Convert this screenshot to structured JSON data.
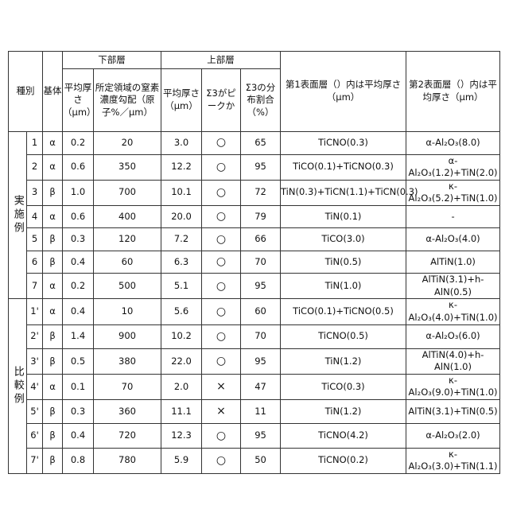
{
  "header": {
    "type": "種別",
    "substrate": "基体",
    "lower_layer": "下部層",
    "lower_thickness": "平均厚さ（μm）",
    "lower_gradient": "所定領域の窒素濃度勾配（原子%／μm）",
    "upper_layer": "上部層",
    "upper_thickness": "平均厚さ（μm）",
    "sigma3_peak": "Σ3がピークか",
    "sigma3_ratio": "Σ3の分布割合（%）",
    "surface1": "第1表面層（）内は平均厚さ（μm）",
    "surface2": "第2表面層（）内は平均厚さ（μm）"
  },
  "groups": {
    "examples": "実施例",
    "comparatives": "比較例"
  },
  "examples": [
    {
      "no": "1",
      "base": "α",
      "lt": "0.2",
      "grad": "20",
      "ut": "3.0",
      "peak": "○",
      "ratio": "65",
      "s1": "TiCNO(0.3)",
      "s2": "α-Al₂O₃(8.0)"
    },
    {
      "no": "2",
      "base": "α",
      "lt": "0.6",
      "grad": "350",
      "ut": "12.2",
      "peak": "○",
      "ratio": "95",
      "s1": "TiCO(0.1)+TiCNO(0.3)",
      "s2": "α-Al₂O₃(1.2)+TiN(2.0)"
    },
    {
      "no": "3",
      "base": "β",
      "lt": "1.0",
      "grad": "700",
      "ut": "10.1",
      "peak": "○",
      "ratio": "72",
      "s1": "TiN(0.3)+TiCN(1.1)+TiCN(0.3)",
      "s2": "κ-Al₂O₃(5.2)+TiN(1.0)"
    },
    {
      "no": "4",
      "base": "α",
      "lt": "0.6",
      "grad": "400",
      "ut": "20.0",
      "peak": "○",
      "ratio": "79",
      "s1": "TiN(0.1)",
      "s2": "-"
    },
    {
      "no": "5",
      "base": "β",
      "lt": "0.3",
      "grad": "120",
      "ut": "7.2",
      "peak": "○",
      "ratio": "66",
      "s1": "TiCO(3.0)",
      "s2": "α-Al₂O₃(4.0)"
    },
    {
      "no": "6",
      "base": "β",
      "lt": "0.4",
      "grad": "60",
      "ut": "6.3",
      "peak": "○",
      "ratio": "70",
      "s1": "TiN(0.5)",
      "s2": "AlTiN(1.0)"
    },
    {
      "no": "7",
      "base": "α",
      "lt": "0.2",
      "grad": "500",
      "ut": "5.1",
      "peak": "○",
      "ratio": "95",
      "s1": "TiN(1.0)",
      "s2": "AlTiN(3.1)+h-AlN(0.5)"
    }
  ],
  "comparatives": [
    {
      "no": "1'",
      "base": "α",
      "lt": "0.4",
      "grad": "10",
      "ut": "5.6",
      "peak": "○",
      "ratio": "60",
      "s1": "TiCO(0.1)+TiCNO(0.5)",
      "s2": "κ-Al₂O₃(4.0)+TiN(1.0)"
    },
    {
      "no": "2'",
      "base": "β",
      "lt": "1.4",
      "grad": "900",
      "ut": "10.2",
      "peak": "○",
      "ratio": "70",
      "s1": "TiCNO(0.5)",
      "s2": "α-Al₂O₃(6.0)"
    },
    {
      "no": "3'",
      "base": "β",
      "lt": "0.5",
      "grad": "380",
      "ut": "22.0",
      "peak": "○",
      "ratio": "95",
      "s1": "TiN(1.2)",
      "s2": "AlTiN(4.0)+h-AlN(1.0)"
    },
    {
      "no": "4'",
      "base": "α",
      "lt": "0.1",
      "grad": "70",
      "ut": "2.0",
      "peak": "×",
      "ratio": "47",
      "s1": "TiCO(0.3)",
      "s2": "κ-Al₂O₃(9.0)+TiN(1.0)"
    },
    {
      "no": "5'",
      "base": "β",
      "lt": "0.3",
      "grad": "360",
      "ut": "11.1",
      "peak": "×",
      "ratio": "11",
      "s1": "TiN(1.2)",
      "s2": "AlTiN(3.1)+TiN(0.5)"
    },
    {
      "no": "6'",
      "base": "β",
      "lt": "0.4",
      "grad": "720",
      "ut": "12.3",
      "peak": "○",
      "ratio": "95",
      "s1": "TiCNO(4.2)",
      "s2": "α-Al₂O₃(2.0)"
    },
    {
      "no": "7'",
      "base": "β",
      "lt": "0.8",
      "grad": "780",
      "ut": "5.9",
      "peak": "○",
      "ratio": "50",
      "s1": "TiCNO(0.2)",
      "s2": "κ-Al₂O₃(3.0)+TiN(1.1)"
    }
  ]
}
